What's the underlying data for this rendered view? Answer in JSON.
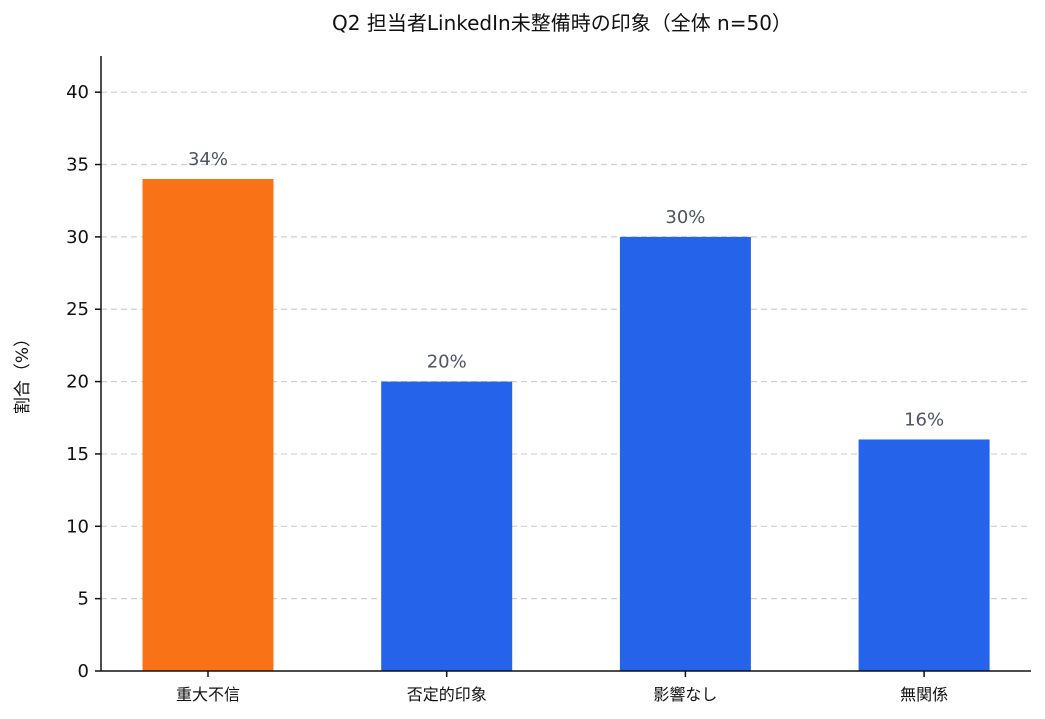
{
  "chart_data": {
    "type": "bar",
    "title": "Q2 担当者LinkedIn未整備時の印象（全体 n=50）",
    "xlabel": "",
    "ylabel": "割合（%）",
    "categories": [
      "重大不信",
      "否定的印象",
      "影響なし",
      "無関係"
    ],
    "values": [
      34,
      20,
      30,
      16
    ],
    "data_labels": [
      "34%",
      "20%",
      "30%",
      "16%"
    ],
    "ylim": [
      0,
      42.5
    ],
    "yticks": [
      0,
      5,
      10,
      15,
      20,
      25,
      30,
      35,
      40
    ],
    "grid": true,
    "grid_axis": "y",
    "colors": [
      "#f97316",
      "#2563eb",
      "#2563eb",
      "#2563eb"
    ],
    "legend": "none"
  }
}
